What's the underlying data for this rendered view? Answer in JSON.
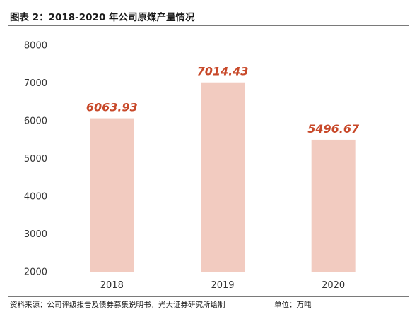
{
  "figure": {
    "title": "图表 2：2018-2020 年公司原煤产量情况",
    "source": "资料来源：公司评级报告及债券募集说明书，光大证券研究所绘制",
    "unit": "单位：万吨"
  },
  "chart_data": {
    "type": "bar",
    "categories": [
      "2018",
      "2019",
      "2020"
    ],
    "values": [
      6063.93,
      7014.43,
      5496.67
    ],
    "data_labels": [
      "6063.93",
      "7014.43",
      "5496.67"
    ],
    "ylim": [
      2000,
      8000
    ],
    "yticks": [
      "2000",
      "3000",
      "4000",
      "5000",
      "6000",
      "7000",
      "8000"
    ],
    "bar_color": "#f2cbc0",
    "label_color": "#c8492a",
    "grid": false
  }
}
